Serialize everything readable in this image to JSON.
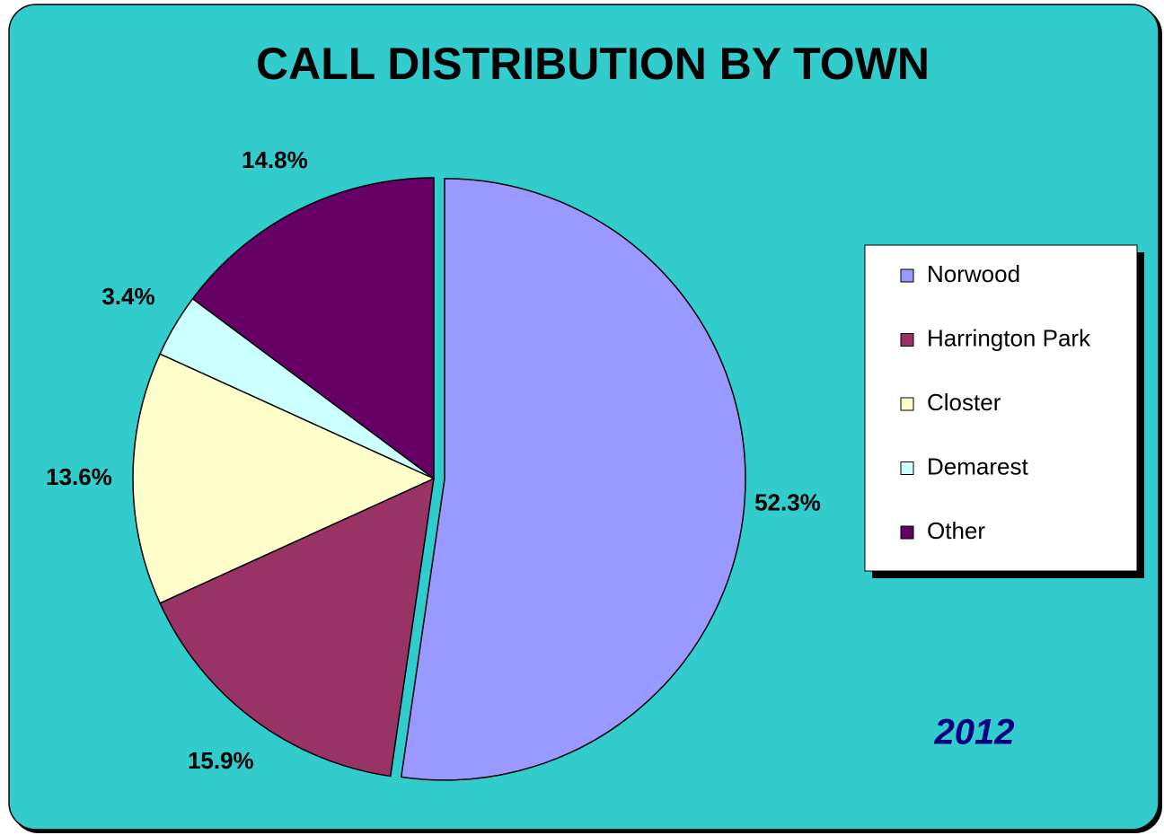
{
  "chart_data": {
    "type": "pie",
    "title": "CALL DISTRIBUTION BY TOWN",
    "categories": [
      "Norwood",
      "Harrington Park",
      "Closter",
      "Demarest",
      "Other"
    ],
    "values": [
      52.3,
      15.9,
      13.6,
      3.4,
      14.8
    ],
    "value_labels": [
      "52.3%",
      "15.9%",
      "13.6%",
      "3.4%",
      "14.8%"
    ],
    "colors": [
      "#9999ff",
      "#993366",
      "#ffffcc",
      "#ccffff",
      "#660066"
    ],
    "annotation": "2012",
    "legend": "right"
  }
}
